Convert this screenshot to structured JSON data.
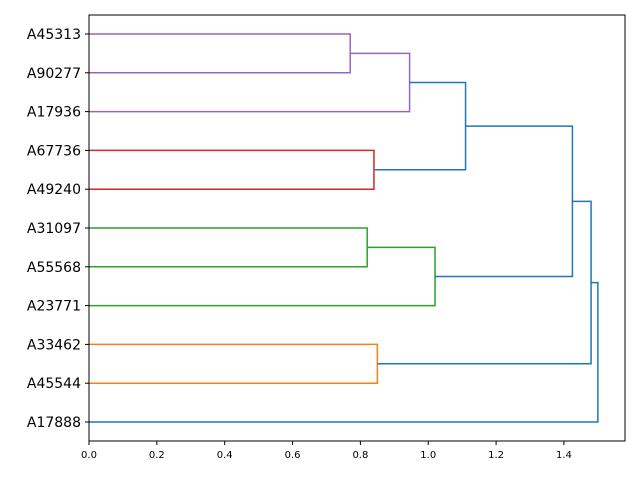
{
  "chart_data": {
    "type": "dendrogram",
    "orientation": "horizontal",
    "title": "",
    "xlabel": "",
    "ylabel": "",
    "xlim": [
      0,
      1.58
    ],
    "x_ticks": [
      0.0,
      0.2,
      0.4,
      0.6,
      0.8,
      1.0,
      1.2,
      1.4
    ],
    "x_tick_labels": [
      "0.0",
      "0.2",
      "0.4",
      "0.6",
      "0.8",
      "1.0",
      "1.2",
      "1.4"
    ],
    "grid": false,
    "leaves": [
      "A45313",
      "A90277",
      "A17936",
      "A67736",
      "A49240",
      "A31097",
      "A55568",
      "A23771",
      "A33462",
      "A45544",
      "A17888"
    ],
    "links": [
      {
        "left": [
          0,
          0
        ],
        "right": [
          1,
          0
        ],
        "height": 0.77,
        "color": "#9467bd"
      },
      {
        "left": [
          0.5,
          0.77
        ],
        "right": [
          2,
          0
        ],
        "height": 0.945,
        "color": "#9467bd"
      },
      {
        "left": [
          3,
          0
        ],
        "right": [
          4,
          0
        ],
        "height": 0.84,
        "color": "#d62728"
      },
      {
        "left": [
          1.25,
          0.945
        ],
        "right": [
          3.5,
          0.84
        ],
        "height": 1.11,
        "color": "#1f77b4"
      },
      {
        "left": [
          5,
          0
        ],
        "right": [
          6,
          0
        ],
        "height": 0.82,
        "color": "#2ca02c"
      },
      {
        "left": [
          5.5,
          0.82
        ],
        "right": [
          7,
          0
        ],
        "height": 1.02,
        "color": "#2ca02c"
      },
      {
        "left": [
          2.375,
          1.11
        ],
        "right": [
          6.25,
          1.02
        ],
        "height": 1.425,
        "color": "#1f77b4"
      },
      {
        "left": [
          8,
          0
        ],
        "right": [
          9,
          0
        ],
        "height": 0.85,
        "color": "#ff7f0e"
      },
      {
        "left": [
          4.3125,
          1.425
        ],
        "right": [
          8.5,
          0.85
        ],
        "height": 1.48,
        "color": "#1f77b4"
      },
      {
        "left": [
          6.40625,
          1.48
        ],
        "right": [
          10,
          0
        ],
        "height": 1.5,
        "color": "#1f77b4"
      }
    ]
  }
}
